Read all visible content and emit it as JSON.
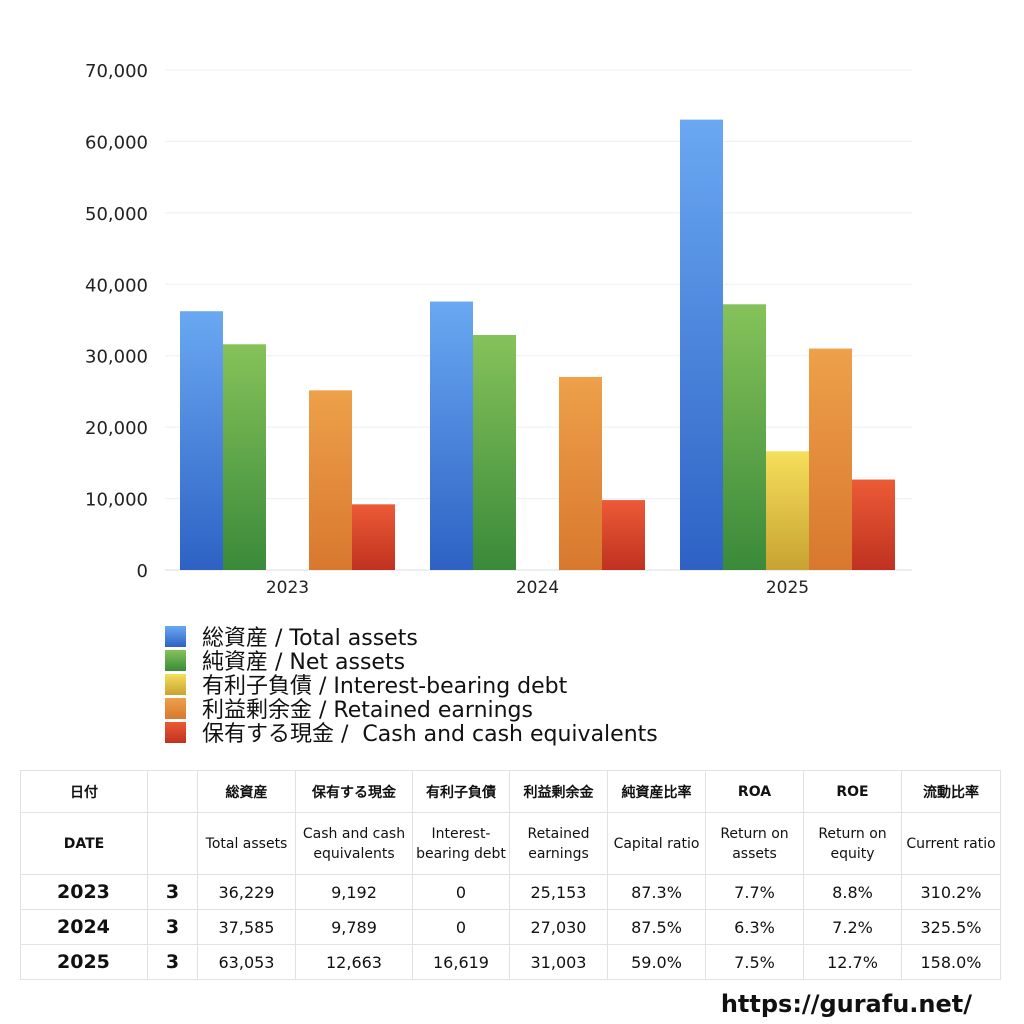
{
  "chart_data": {
    "type": "bar",
    "categories": [
      "2023",
      "2024",
      "2025"
    ],
    "ylim": [
      0,
      70000
    ],
    "yticks": [
      0,
      10000,
      20000,
      30000,
      40000,
      50000,
      60000,
      70000
    ],
    "ytick_labels": [
      "0",
      "10,000",
      "20,000",
      "30,000",
      "40,000",
      "50,000",
      "60,000",
      "70,000"
    ],
    "grid": true,
    "legend_position": "bottom",
    "series": [
      {
        "name": "総資産 / Total assets",
        "values": [
          36229,
          37585,
          63053
        ],
        "color_top": "#6aa8f2",
        "color_bottom": "#2d62c4"
      },
      {
        "name": "純資産 / Net assets",
        "values": [
          31600,
          32900,
          37200
        ],
        "color_top": "#86c25a",
        "color_bottom": "#3a8a3a"
      },
      {
        "name": "有利子負債 / Interest-bearing debt",
        "values": [
          0,
          0,
          16619
        ],
        "color_top": "#f5df5a",
        "color_bottom": "#c8a232"
      },
      {
        "name": "利益剰余金 / Retained earnings",
        "values": [
          25153,
          27030,
          31003
        ],
        "color_top": "#eea04a",
        "color_bottom": "#d8782e"
      },
      {
        "name": "保有する現金 /  Cash and cash equivalents",
        "values": [
          9192,
          9789,
          12663
        ],
        "color_top": "#ec5a36",
        "color_bottom": "#c03220"
      }
    ]
  },
  "table": {
    "header_jp": [
      "日付",
      "",
      "総資産",
      "保有する現金",
      "有利子負債",
      "利益剰余金",
      "純資産比率",
      "ROA",
      "ROE",
      "流動比率"
    ],
    "header_en": [
      "DATE",
      "",
      "Total assets",
      "Cash and cash equivalents",
      "Interest-bearing debt",
      "Retained earnings",
      "Capital ratio",
      "Return on assets",
      "Return on equity",
      "Current ratio"
    ],
    "rows": [
      [
        "2023",
        "3",
        "36,229",
        "9,192",
        "0",
        "25,153",
        "87.3%",
        "7.7%",
        "8.8%",
        "310.2%"
      ],
      [
        "2024",
        "3",
        "37,585",
        "9,789",
        "0",
        "27,030",
        "87.5%",
        "6.3%",
        "7.2%",
        "325.5%"
      ],
      [
        "2025",
        "3",
        "63,053",
        "12,663",
        "16,619",
        "31,003",
        "59.0%",
        "7.5%",
        "12.7%",
        "158.0%"
      ]
    ]
  },
  "watermark": "https://gurafu.net/"
}
